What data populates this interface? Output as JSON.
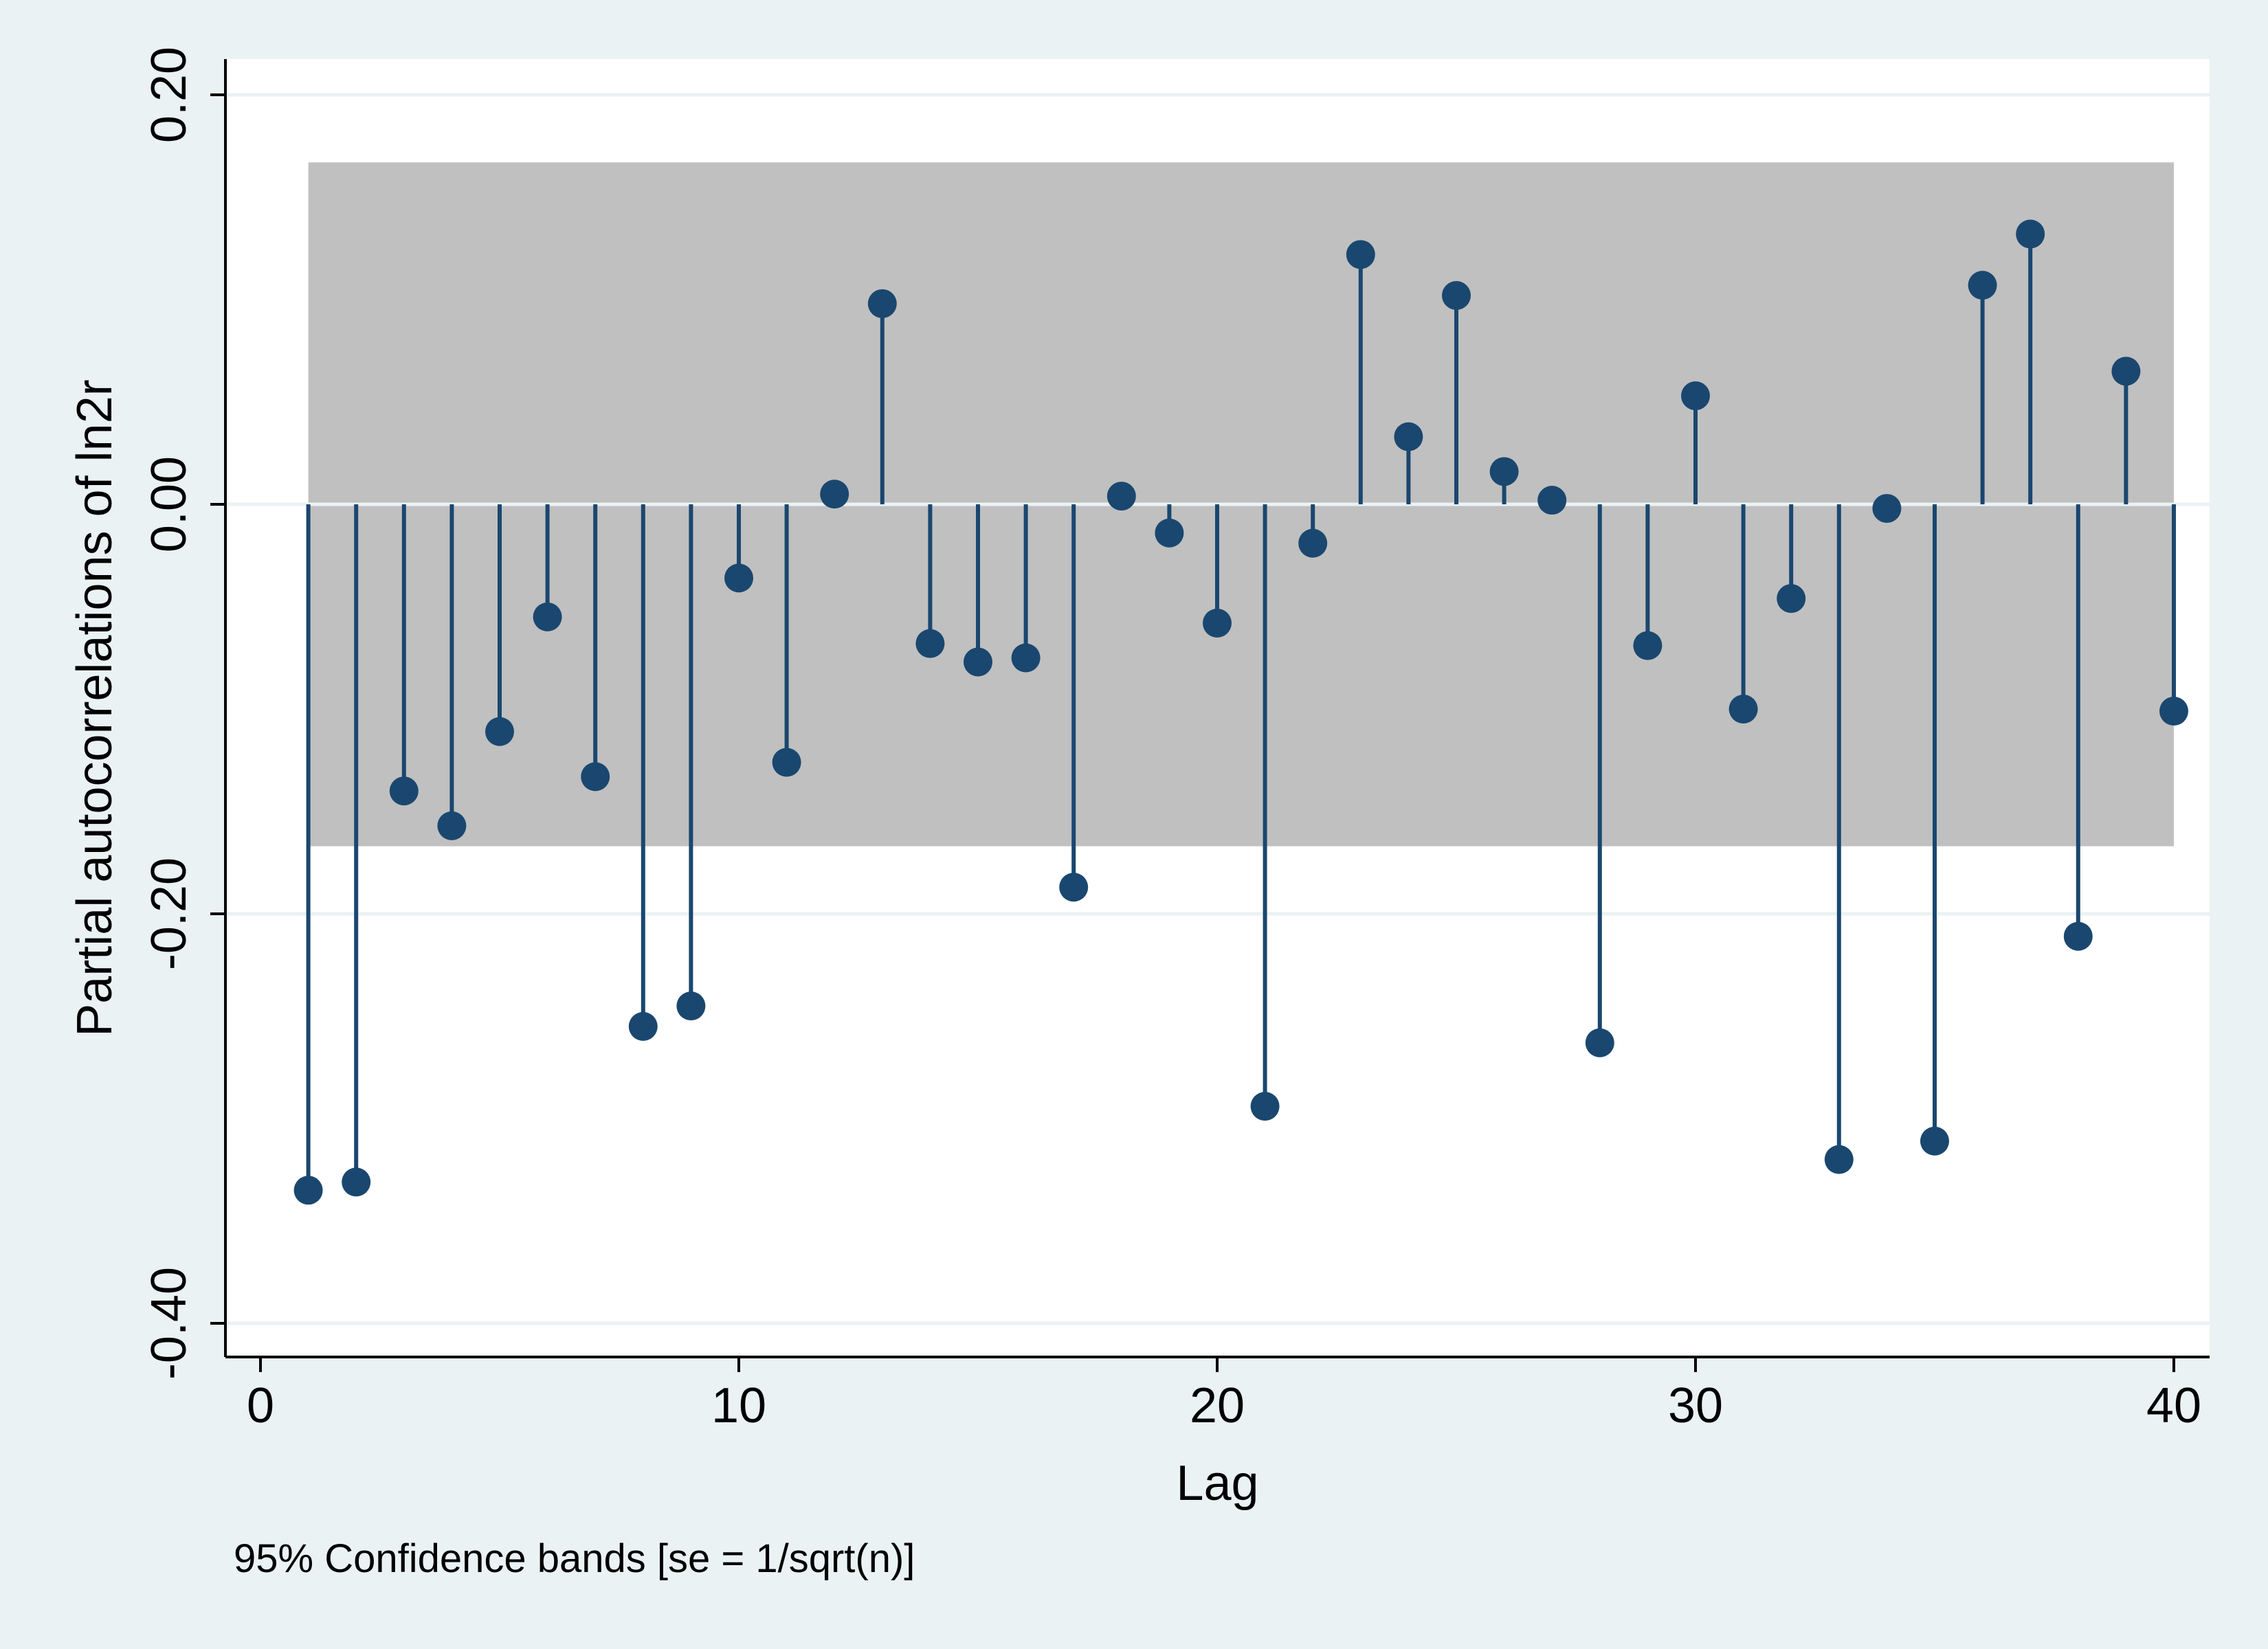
{
  "chart_data": {
    "type": "scatter",
    "subtype": "partial-autocorrelation-stem",
    "xlabel": "Lag",
    "ylabel": "Partial autocorrelations of ln2r",
    "note": "95% Confidence bands [se = 1/sqrt(n)]",
    "xlim": [
      0,
      40
    ],
    "ylim": [
      -0.4,
      0.2
    ],
    "x_ticks": [
      "0",
      "10",
      "20",
      "30",
      "40"
    ],
    "y_ticks": [
      "-0.40",
      "-0.20",
      "0.00",
      "0.20"
    ],
    "confidence_band": {
      "lower": -0.167,
      "upper": 0.167,
      "x_from": 1,
      "x_to": 40
    },
    "grid": true,
    "x": [
      1,
      2,
      3,
      4,
      5,
      6,
      7,
      8,
      9,
      10,
      11,
      12,
      13,
      14,
      15,
      16,
      17,
      18,
      19,
      20,
      21,
      22,
      23,
      24,
      25,
      26,
      27,
      28,
      29,
      30,
      31,
      32,
      33,
      34,
      35,
      36,
      37,
      38,
      39,
      40
    ],
    "values": [
      -0.335,
      -0.331,
      -0.14,
      -0.157,
      -0.111,
      -0.055,
      -0.133,
      -0.255,
      -0.245,
      -0.036,
      -0.126,
      0.005,
      0.098,
      -0.068,
      -0.077,
      -0.075,
      -0.187,
      0.004,
      -0.014,
      -0.058,
      -0.294,
      -0.019,
      0.122,
      0.033,
      0.102,
      0.016,
      0.002,
      -0.263,
      -0.069,
      0.053,
      -0.1,
      -0.046,
      -0.32,
      -0.002,
      -0.311,
      0.107,
      0.132,
      -0.211,
      0.065,
      -0.101
    ],
    "colors": {
      "marker": "#1a476f",
      "band": "#c0c0c0",
      "plot_bg": "#ffffff",
      "outer_bg": "#eaf2f3",
      "grid": "#eaf2f3"
    }
  }
}
